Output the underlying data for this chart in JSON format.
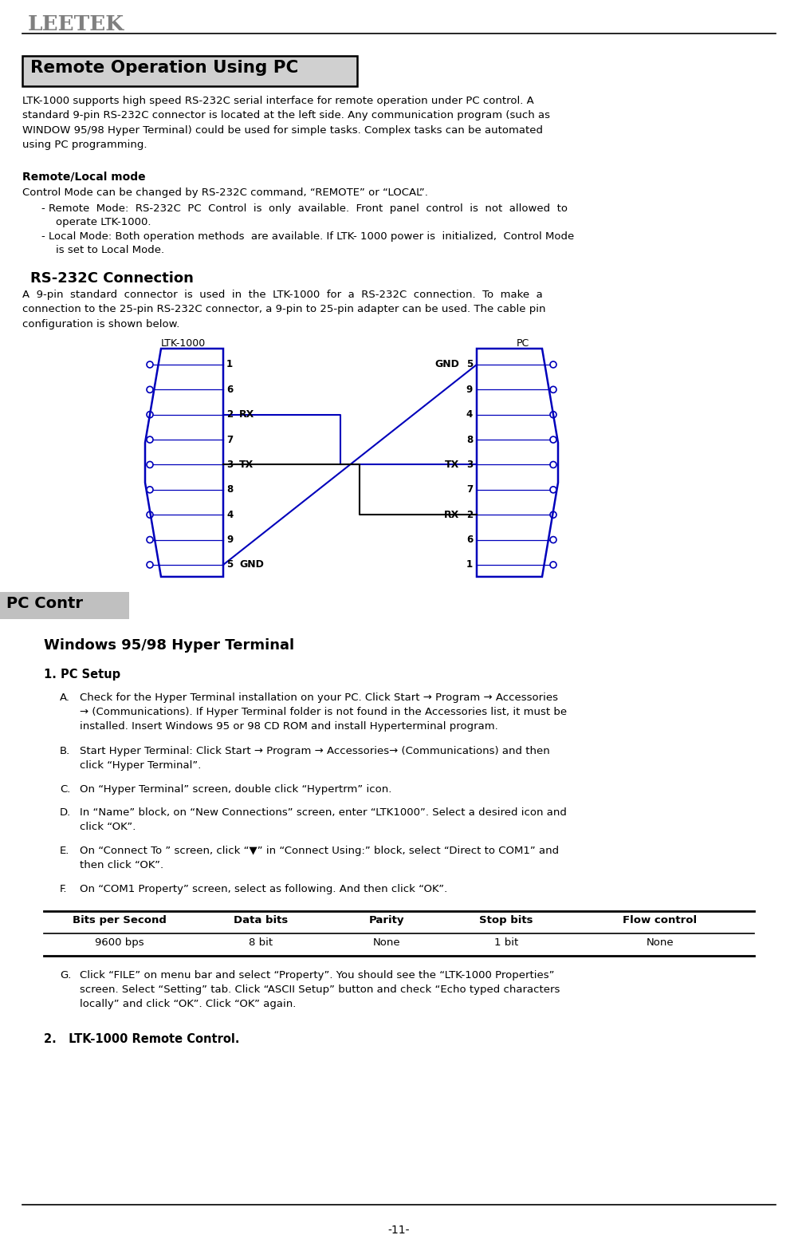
{
  "bg_color": "#ffffff",
  "leetek_color": "#808080",
  "title_box_color": "#d0d0d0",
  "title_text": "Remote Operation Using PC",
  "section2_title": "RS-232C Connection",
  "windows_title": "Windows 95/98 Hyper Terminal",
  "pc_setup_title": "1. PC Setup",
  "ltk_remote_title": "2.   LTK-1000 Remote Control.",
  "blue_color": "#0000bb",
  "page_number": "-11-",
  "pin_labels_l": [
    "1",
    "6",
    "2",
    "7",
    "3",
    "8",
    "4",
    "9",
    "5"
  ],
  "pin_labels_r": [
    "5",
    "9",
    "4",
    "8",
    "3",
    "7",
    "2",
    "6",
    "1"
  ],
  "func_labels_l": [
    [
      2,
      "RX"
    ],
    [
      4,
      "TX"
    ],
    [
      8,
      "GND"
    ]
  ],
  "func_labels_r": [
    [
      0,
      "GND"
    ],
    [
      4,
      "TX"
    ],
    [
      6,
      "RX"
    ]
  ],
  "table_col_headers": [
    "Bits per Second",
    "Data bits",
    "Parity",
    "Stop bits",
    "Flow control"
  ],
  "table_values": [
    "9600 bps",
    "8 bit",
    "None",
    "1 bit",
    "None"
  ],
  "col_positions": [
    55,
    245,
    410,
    560,
    710,
    946
  ]
}
